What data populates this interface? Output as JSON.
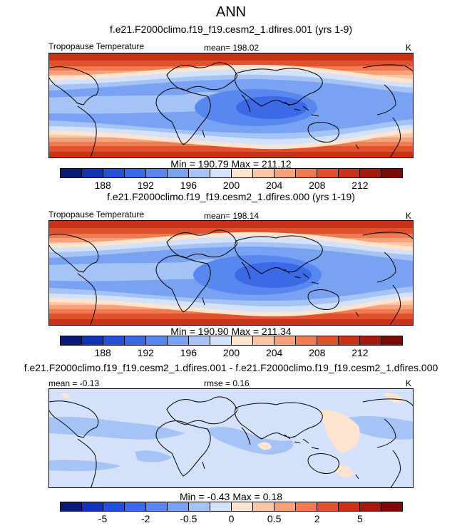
{
  "figure": {
    "title": "ANN",
    "diff_title": "f.e21.F2000climo.f19_f19.cesm2_1.dfires.001 - f.e21.F2000climo.f19_f19.cesm2_1.dfires.000"
  },
  "palette_abs": [
    "#0a1a78",
    "#1234b4",
    "#2550d8",
    "#3c6ae6",
    "#5887f0",
    "#7aa2f2",
    "#a6c3f6",
    "#d3e2fa",
    "#fde4cf",
    "#fcc6a4",
    "#f7a27a",
    "#ef7b52",
    "#e0522e",
    "#c83218",
    "#a41a0e",
    "#7a0a06"
  ],
  "palette_diff": [
    "#0a1a78",
    "#1234b4",
    "#2550d8",
    "#3c6ae6",
    "#5887f0",
    "#7aa2f2",
    "#a6c3f6",
    "#d3e2fa",
    "#fde4cf",
    "#fcc6a4",
    "#f7a27a",
    "#ef7b52",
    "#e0522e",
    "#c83218",
    "#a41a0e",
    "#7a0a06"
  ],
  "chart_data": [
    {
      "type": "heatmap",
      "panel": "test",
      "subtitle": "f.e21.F2000climo.f19_f19.cesm2_1.dfires.001 (yrs 1-9)",
      "left_label": "Tropopause Temperature",
      "center_label": "mean= 198.02",
      "units": "K",
      "stats": "Min = 190.79 Max = 211.12",
      "colorbar_levels": [
        186,
        188,
        190,
        192,
        194,
        196,
        198,
        200,
        202,
        204,
        206,
        208,
        210,
        212,
        214
      ],
      "colorbar_tick_labels": [
        "188",
        "192",
        "196",
        "200",
        "204",
        "208",
        "212"
      ],
      "colorbar_tick_values": [
        188,
        192,
        196,
        200,
        204,
        208,
        212
      ]
    },
    {
      "type": "heatmap",
      "panel": "control",
      "subtitle": "f.e21.F2000climo.f19_f19.cesm2_1.dfires.000 (yrs 1-19)",
      "left_label": "Tropopause Temperature",
      "center_label": "mean= 198.14",
      "units": "K",
      "stats": "Min = 190.90 Max = 211.34",
      "colorbar_levels": [
        186,
        188,
        190,
        192,
        194,
        196,
        198,
        200,
        202,
        204,
        206,
        208,
        210,
        212,
        214
      ],
      "colorbar_tick_labels": [
        "188",
        "192",
        "196",
        "200",
        "204",
        "208",
        "212"
      ],
      "colorbar_tick_values": [
        188,
        192,
        196,
        200,
        204,
        208,
        212
      ]
    },
    {
      "type": "heatmap",
      "panel": "difference",
      "left_label": "mean = -0.13",
      "center_label": "rmse = 0.16",
      "units": "K",
      "stats": "Min = -0.43 Max = 0.18",
      "colorbar_tick_labels": [
        "-5",
        "-2",
        "-0.5",
        "0",
        "0.5",
        "2",
        "5"
      ]
    }
  ]
}
